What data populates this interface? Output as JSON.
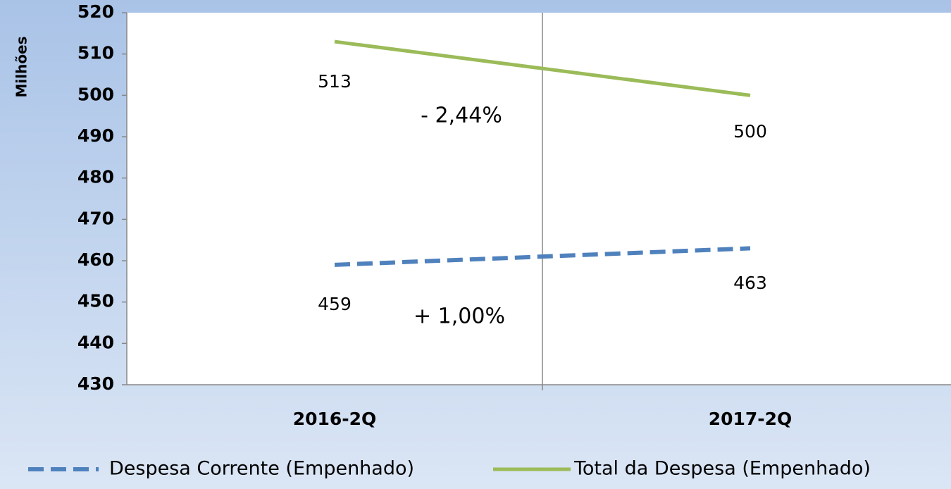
{
  "chart_data": {
    "type": "line",
    "y_label": "Milhões",
    "categories": [
      "2016-2Q",
      "2017-2Q"
    ],
    "series": [
      {
        "name": "Despesa Corrente (Empenhado)",
        "color": "#4f81bd",
        "dashed": true,
        "values": [
          459,
          463
        ]
      },
      {
        "name": "Total da Despesa (Empenhado)",
        "color": "#9bbb59",
        "dashed": false,
        "values": [
          513,
          500
        ]
      }
    ],
    "annotations": [
      "- 2,44%",
      "+ 1,00%"
    ],
    "ylim": [
      430,
      520
    ],
    "yticks": [
      430,
      440,
      450,
      460,
      470,
      480,
      490,
      500,
      510,
      520
    ],
    "legend": "bottom"
  }
}
